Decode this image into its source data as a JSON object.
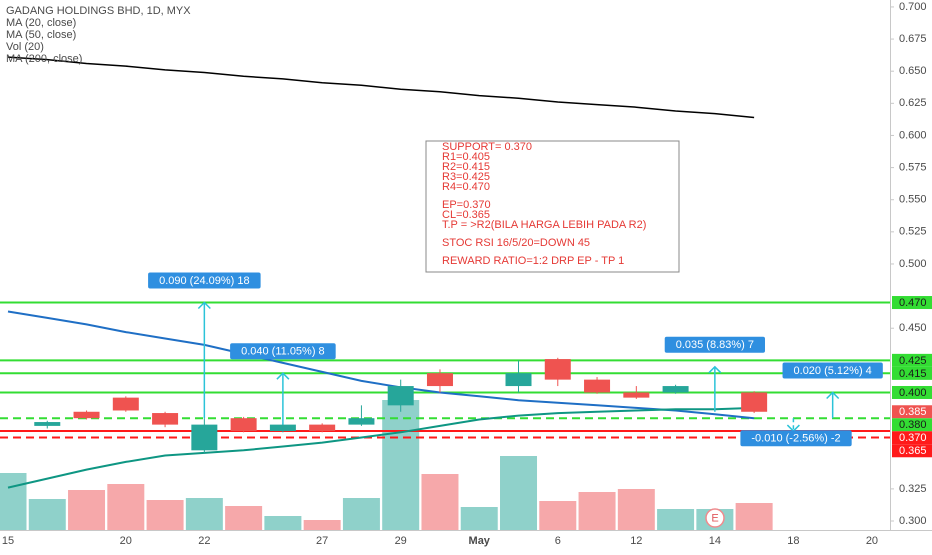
{
  "chart_data": {
    "type": "candlestick",
    "title": "GADANG HOLDINGS BHD, 1D, MYX",
    "legend_items": [
      "MA (20, close)",
      "MA (50, close)",
      "Vol (20)",
      "MA (200, close)"
    ],
    "categories": [
      "15",
      null,
      null,
      "20",
      null,
      "22",
      null,
      null,
      "27",
      null,
      "29",
      null,
      "May",
      null,
      "6",
      null,
      "12",
      null,
      "14",
      null,
      "18",
      null,
      "20"
    ],
    "open": [
      null,
      0.374,
      0.385,
      0.396,
      0.384,
      0.355,
      0.38,
      0.37,
      0.375,
      0.375,
      0.39,
      0.415,
      null,
      0.405,
      0.426,
      0.41,
      0.4,
      0.4,
      null,
      0.4,
      null,
      null,
      null
    ],
    "high": [
      null,
      0.378,
      0.386,
      0.397,
      0.385,
      0.38,
      0.381,
      0.376,
      0.376,
      0.39,
      0.41,
      0.418,
      null,
      0.425,
      0.427,
      0.412,
      0.405,
      0.406,
      null,
      0.401,
      null,
      null,
      null
    ],
    "low": [
      null,
      0.372,
      0.379,
      0.385,
      0.373,
      0.353,
      0.369,
      0.369,
      0.369,
      0.374,
      0.385,
      0.4,
      null,
      0.4,
      0.405,
      0.399,
      0.395,
      0.399,
      null,
      0.384,
      null,
      null,
      null
    ],
    "close": [
      null,
      0.377,
      0.38,
      0.386,
      0.375,
      0.375,
      0.37,
      0.375,
      0.37,
      0.38,
      0.405,
      0.405,
      null,
      0.415,
      0.41,
      0.4,
      0.396,
      0.405,
      null,
      0.385,
      null,
      null,
      null
    ],
    "up_color": "#26a69a",
    "down_color": "#ef5350",
    "volume": [
      57,
      31,
      40,
      46,
      30,
      32,
      24,
      14,
      10,
      32,
      130,
      56,
      23,
      74,
      29,
      38,
      41,
      21,
      21,
      27,
      null,
      null,
      null
    ],
    "volume_up_color": "#8fd1ca",
    "volume_down_color": "#f6a8aa",
    "series": [
      {
        "name": "MA (20, close)",
        "color": "#1f6fc5",
        "values": [
          0.463,
          0.458,
          0.453,
          0.447,
          0.442,
          0.437,
          0.43,
          0.423,
          0.416,
          0.409,
          0.404,
          0.4,
          0.397,
          0.394,
          0.392,
          0.39,
          0.388,
          0.386,
          0.383,
          0.38,
          null,
          null,
          null
        ]
      },
      {
        "name": "MA (50, close)",
        "color": "#0e9683",
        "values": [
          0.326,
          0.333,
          0.34,
          0.346,
          0.351,
          0.353,
          0.355,
          0.358,
          0.361,
          0.365,
          0.369,
          0.374,
          0.379,
          0.382,
          0.384,
          0.385,
          0.386,
          0.387,
          0.387,
          0.388,
          null,
          null,
          null
        ]
      },
      {
        "name": "MA (200, close)",
        "color": "#000000",
        "values": [
          0.661,
          0.659,
          0.656,
          0.654,
          0.651,
          0.649,
          0.646,
          0.644,
          0.641,
          0.639,
          0.636,
          0.634,
          0.631,
          0.629,
          0.626,
          0.624,
          0.622,
          0.619,
          0.617,
          0.614,
          null,
          null,
          null
        ]
      }
    ],
    "ylim": [
      0.293,
      0.7054
    ],
    "yticks": [
      {
        "value": 0.3,
        "label": "0.300"
      },
      {
        "value": 0.325,
        "label": "0.325"
      },
      {
        "value": 0.45,
        "label": "0.450"
      },
      {
        "value": 0.5,
        "label": "0.500"
      },
      {
        "value": 0.525,
        "label": "0.525"
      },
      {
        "value": 0.55,
        "label": "0.550"
      },
      {
        "value": 0.575,
        "label": "0.575"
      },
      {
        "value": 0.6,
        "label": "0.600"
      },
      {
        "value": 0.625,
        "label": "0.625"
      },
      {
        "value": 0.65,
        "label": "0.650"
      },
      {
        "value": 0.675,
        "label": "0.675"
      },
      {
        "value": 0.7,
        "label": "0.700"
      }
    ],
    "grid": false,
    "price_lines": [
      {
        "value": 0.47,
        "label": "0.470",
        "color": "#33dd33",
        "style": "solid"
      },
      {
        "value": 0.425,
        "label": "0.425",
        "color": "#33dd33",
        "style": "solid"
      },
      {
        "value": 0.415,
        "label": "0.415",
        "color": "#33dd33",
        "style": "solid"
      },
      {
        "value": 0.4,
        "label": "0.400",
        "color": "#33dd33",
        "style": "solid"
      },
      {
        "value": 0.385,
        "label": "0.385",
        "color": "#ef5350",
        "style": "none"
      },
      {
        "value": 0.38,
        "label": "0.380",
        "color": "#33dd33",
        "style": "dashed"
      },
      {
        "value": 0.37,
        "label": "0.370",
        "color": "#ff1a1a",
        "style": "solid"
      },
      {
        "value": 0.365,
        "label": "0.365",
        "color": "#ff1a1a",
        "style": "dashed"
      }
    ],
    "measurements": [
      {
        "at": 5,
        "from": 0.38,
        "to": 0.47,
        "label": "0.090 (24.09%) 18"
      },
      {
        "at": 7,
        "from": 0.375,
        "to": 0.415,
        "label": "0.040 (11.05%) 8"
      },
      {
        "at": 18,
        "from": 0.385,
        "to": 0.42,
        "label": "0.035 (8.83%) 7"
      },
      {
        "at": 21,
        "from": 0.38,
        "to": 0.4,
        "label": "0.020 (5.12%) 4"
      },
      {
        "at": 20,
        "from": 0.38,
        "to": 0.37,
        "label": "-0.010 (-2.56%) -2"
      }
    ],
    "note_box": [
      [
        "SUPPORT= 0.370",
        "R1=0.405",
        "R2=0.415",
        "R3=0.425",
        "R4=0.470"
      ],
      [
        "EP=0.370",
        "CL=0.365",
        "T.P = >R2(BILA HARGA LEBIH PADA R2)"
      ],
      [
        "STOC RSI  16/5/20=DOWN 45"
      ],
      [
        "REWARD RATIO=1:2 DRP EP - TP 1"
      ]
    ],
    "earnings_marker": "E"
  }
}
